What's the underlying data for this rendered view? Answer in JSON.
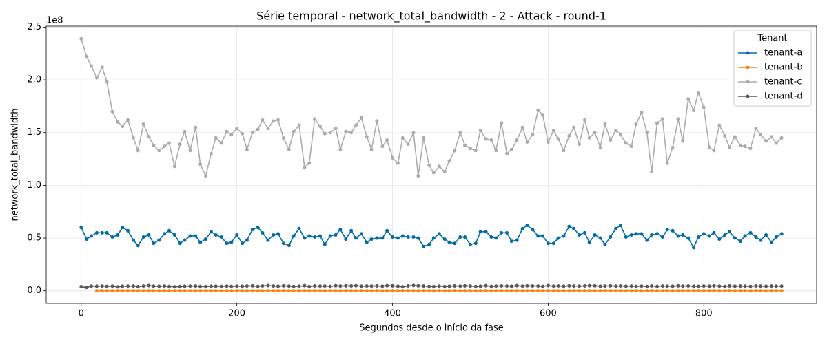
{
  "chart_data": {
    "type": "line",
    "title": "Série temporal - network_total_bandwidth - 2 - Attack - round-1",
    "x_label": "Segundos desde o início da fase",
    "y_label": "network_total_bandwidth",
    "y_offset_label": "1e8",
    "legend_title": "Tenant",
    "legend_position": "upper right",
    "grid": true,
    "xlim": [
      -45,
      945
    ],
    "xticks": [
      0,
      200,
      400,
      600,
      800
    ],
    "ylim": [
      -11950000,
      250950000
    ],
    "yticks": [
      {
        "value": 0,
        "label": "0.0"
      },
      {
        "value": 50000000,
        "label": "0.5"
      },
      {
        "value": 100000000,
        "label": "1.0"
      },
      {
        "value": 150000000,
        "label": "1.5"
      },
      {
        "value": 200000000,
        "label": "2.0"
      },
      {
        "value": 250000000,
        "label": "2.5"
      }
    ],
    "x": [
      0,
      7,
      13,
      20,
      27,
      33,
      40,
      47,
      53,
      60,
      67,
      73,
      80,
      87,
      93,
      100,
      107,
      113,
      120,
      127,
      133,
      140,
      147,
      153,
      160,
      167,
      173,
      180,
      187,
      193,
      200,
      207,
      213,
      220,
      227,
      233,
      240,
      247,
      253,
      260,
      267,
      273,
      280,
      287,
      293,
      300,
      307,
      313,
      320,
      327,
      333,
      340,
      347,
      353,
      360,
      367,
      373,
      380,
      387,
      393,
      400,
      407,
      413,
      420,
      427,
      433,
      440,
      447,
      453,
      460,
      467,
      473,
      480,
      487,
      493,
      500,
      507,
      513,
      520,
      527,
      533,
      540,
      547,
      553,
      560,
      567,
      573,
      580,
      587,
      593,
      600,
      607,
      613,
      620,
      627,
      633,
      640,
      647,
      653,
      660,
      667,
      673,
      680,
      687,
      693,
      700,
      707,
      713,
      720,
      727,
      733,
      740,
      747,
      753,
      760,
      767,
      773,
      780,
      787,
      793,
      800,
      807,
      813,
      820,
      827,
      833,
      840,
      847,
      853,
      860,
      867,
      873,
      880,
      887,
      893,
      900
    ],
    "series": [
      {
        "name": "tenant-a",
        "color": "#006BA4",
        "values": [
          60000000,
          49000000,
          52000000,
          55000000,
          55000000,
          55000000,
          51000000,
          53000000,
          60000000,
          57000000,
          48000000,
          43000000,
          51000000,
          53000000,
          45000000,
          48000000,
          54000000,
          57000000,
          53000000,
          45000000,
          48000000,
          52000000,
          52000000,
          46000000,
          49000000,
          56000000,
          53000000,
          51000000,
          45000000,
          46000000,
          53000000,
          45000000,
          48000000,
          58000000,
          60000000,
          55000000,
          48000000,
          53000000,
          54000000,
          45000000,
          43000000,
          52000000,
          59000000,
          50000000,
          52000000,
          51000000,
          52000000,
          44000000,
          52000000,
          53000000,
          58000000,
          49000000,
          57000000,
          50000000,
          54000000,
          46000000,
          49000000,
          50000000,
          50000000,
          57000000,
          51000000,
          50000000,
          52000000,
          51000000,
          51000000,
          50000000,
          42000000,
          44000000,
          50000000,
          54000000,
          49000000,
          46000000,
          45000000,
          51000000,
          51000000,
          44000000,
          45000000,
          56000000,
          56000000,
          51000000,
          50000000,
          55000000,
          55000000,
          47000000,
          48000000,
          59000000,
          62000000,
          58000000,
          52000000,
          52000000,
          45000000,
          45000000,
          50000000,
          52000000,
          61000000,
          59000000,
          53000000,
          55000000,
          46000000,
          53000000,
          50000000,
          44000000,
          51000000,
          59000000,
          62000000,
          51000000,
          53000000,
          54000000,
          54000000,
          48000000,
          53000000,
          54000000,
          51000000,
          58000000,
          57000000,
          52000000,
          53000000,
          50000000,
          41000000,
          51000000,
          54000000,
          52000000,
          55000000,
          49000000,
          53000000,
          56000000,
          50000000,
          47000000,
          52000000,
          55000000,
          51000000,
          48000000,
          53000000,
          46000000,
          51000000,
          54000000
        ]
      },
      {
        "name": "tenant-b",
        "color": "#FF800E",
        "values": [
          null,
          null,
          null,
          0,
          0,
          0,
          0,
          0,
          0,
          0,
          0,
          0,
          0,
          0,
          0,
          0,
          0,
          0,
          0,
          0,
          0,
          0,
          0,
          0,
          0,
          0,
          0,
          0,
          0,
          0,
          0,
          0,
          0,
          0,
          0,
          0,
          0,
          0,
          0,
          0,
          0,
          0,
          0,
          0,
          0,
          0,
          0,
          0,
          0,
          0,
          0,
          0,
          0,
          0,
          0,
          0,
          0,
          0,
          0,
          0,
          0,
          0,
          0,
          0,
          0,
          0,
          0,
          0,
          0,
          0,
          0,
          0,
          0,
          0,
          0,
          0,
          0,
          0,
          0,
          0,
          0,
          0,
          0,
          0,
          0,
          0,
          0,
          0,
          0,
          0,
          0,
          0,
          0,
          0,
          0,
          0,
          0,
          0,
          0,
          0,
          0,
          0,
          0,
          0,
          0,
          0,
          0,
          0,
          0,
          0,
          0,
          0,
          0,
          0,
          0,
          0,
          0,
          0,
          0,
          0,
          0,
          0,
          0,
          0,
          0,
          0,
          0,
          0,
          0,
          0,
          0,
          0,
          0,
          0,
          0,
          0
        ]
      },
      {
        "name": "tenant-c",
        "color": "#ABABAB",
        "values": [
          239000000,
          222000000,
          213000000,
          202000000,
          212000000,
          198000000,
          170000000,
          160000000,
          156000000,
          162000000,
          145000000,
          133000000,
          158000000,
          146000000,
          138000000,
          133000000,
          137000000,
          140000000,
          118000000,
          139000000,
          151000000,
          133000000,
          155000000,
          120000000,
          109000000,
          130000000,
          145000000,
          140000000,
          151000000,
          148000000,
          154000000,
          149000000,
          134000000,
          150000000,
          153000000,
          162000000,
          154000000,
          161000000,
          162000000,
          145000000,
          134000000,
          151000000,
          157000000,
          117000000,
          121000000,
          163000000,
          156000000,
          149000000,
          150000000,
          154000000,
          134000000,
          151000000,
          150000000,
          157000000,
          164000000,
          146000000,
          134000000,
          161000000,
          137000000,
          143000000,
          126000000,
          121000000,
          145000000,
          139000000,
          150000000,
          109000000,
          145000000,
          119000000,
          112000000,
          118000000,
          113000000,
          123000000,
          133000000,
          150000000,
          138000000,
          135000000,
          133000000,
          152000000,
          144000000,
          143000000,
          133000000,
          159000000,
          130000000,
          134000000,
          143000000,
          155000000,
          141000000,
          148000000,
          171000000,
          167000000,
          141000000,
          152000000,
          144000000,
          133000000,
          147000000,
          155000000,
          139000000,
          162000000,
          145000000,
          150000000,
          136000000,
          158000000,
          143000000,
          152000000,
          148000000,
          140000000,
          137000000,
          158000000,
          169000000,
          150000000,
          113000000,
          159000000,
          163000000,
          121000000,
          136000000,
          163000000,
          142000000,
          182000000,
          171000000,
          188000000,
          174000000,
          136000000,
          133000000,
          157000000,
          147000000,
          136000000,
          146000000,
          138000000,
          137000000,
          135000000,
          154000000,
          148000000,
          142000000,
          146000000,
          140000000,
          145000000
        ]
      },
      {
        "name": "tenant-d",
        "color": "#595959",
        "values": [
          4000000,
          3200000,
          4500000,
          4400000,
          4600000,
          4300000,
          4500000,
          3800000,
          4400000,
          4500000,
          4600000,
          4000000,
          4600000,
          5000000,
          4500000,
          4400000,
          4600000,
          4200000,
          3900000,
          4100000,
          4400000,
          4500000,
          4600000,
          4200000,
          4100000,
          4400000,
          4400000,
          4300000,
          4500000,
          4300000,
          4500000,
          4400000,
          4600000,
          4800000,
          4300000,
          4700000,
          5000000,
          4600000,
          4400000,
          4800000,
          4500000,
          4200000,
          4400000,
          4900000,
          4100000,
          4700000,
          4500000,
          4600000,
          4300000,
          4900000,
          4600000,
          4800000,
          4700000,
          4900000,
          4400000,
          4600000,
          4500000,
          4700000,
          4400000,
          4900000,
          4800000,
          4400000,
          3900000,
          4700000,
          5100000,
          4800000,
          4600000,
          4300000,
          4100000,
          4500000,
          4200000,
          4400000,
          4700000,
          4500000,
          4800000,
          4600000,
          4200000,
          4400000,
          4900000,
          4300000,
          4500000,
          4700000,
          4600000,
          4400000,
          4900000,
          4500000,
          4800000,
          4700000,
          4600000,
          4300000,
          5000000,
          4500000,
          4700000,
          4400000,
          4800000,
          4600000,
          4500000,
          4700000,
          4900000,
          4800000,
          4400000,
          4600000,
          4800000,
          4500000,
          4700000,
          4400000,
          4600000,
          4300000,
          4500000,
          4200000,
          4700000,
          4300000,
          4600000,
          4500000,
          4400000,
          4800000,
          4500000,
          4700000,
          4400000,
          4300000,
          4600000,
          4400000,
          4800000,
          4500000,
          4200000,
          4700000,
          4400000,
          4600000,
          4500000,
          4300000,
          4700000,
          4500000,
          4400000,
          4600000,
          4500000,
          4500000
        ]
      }
    ]
  }
}
